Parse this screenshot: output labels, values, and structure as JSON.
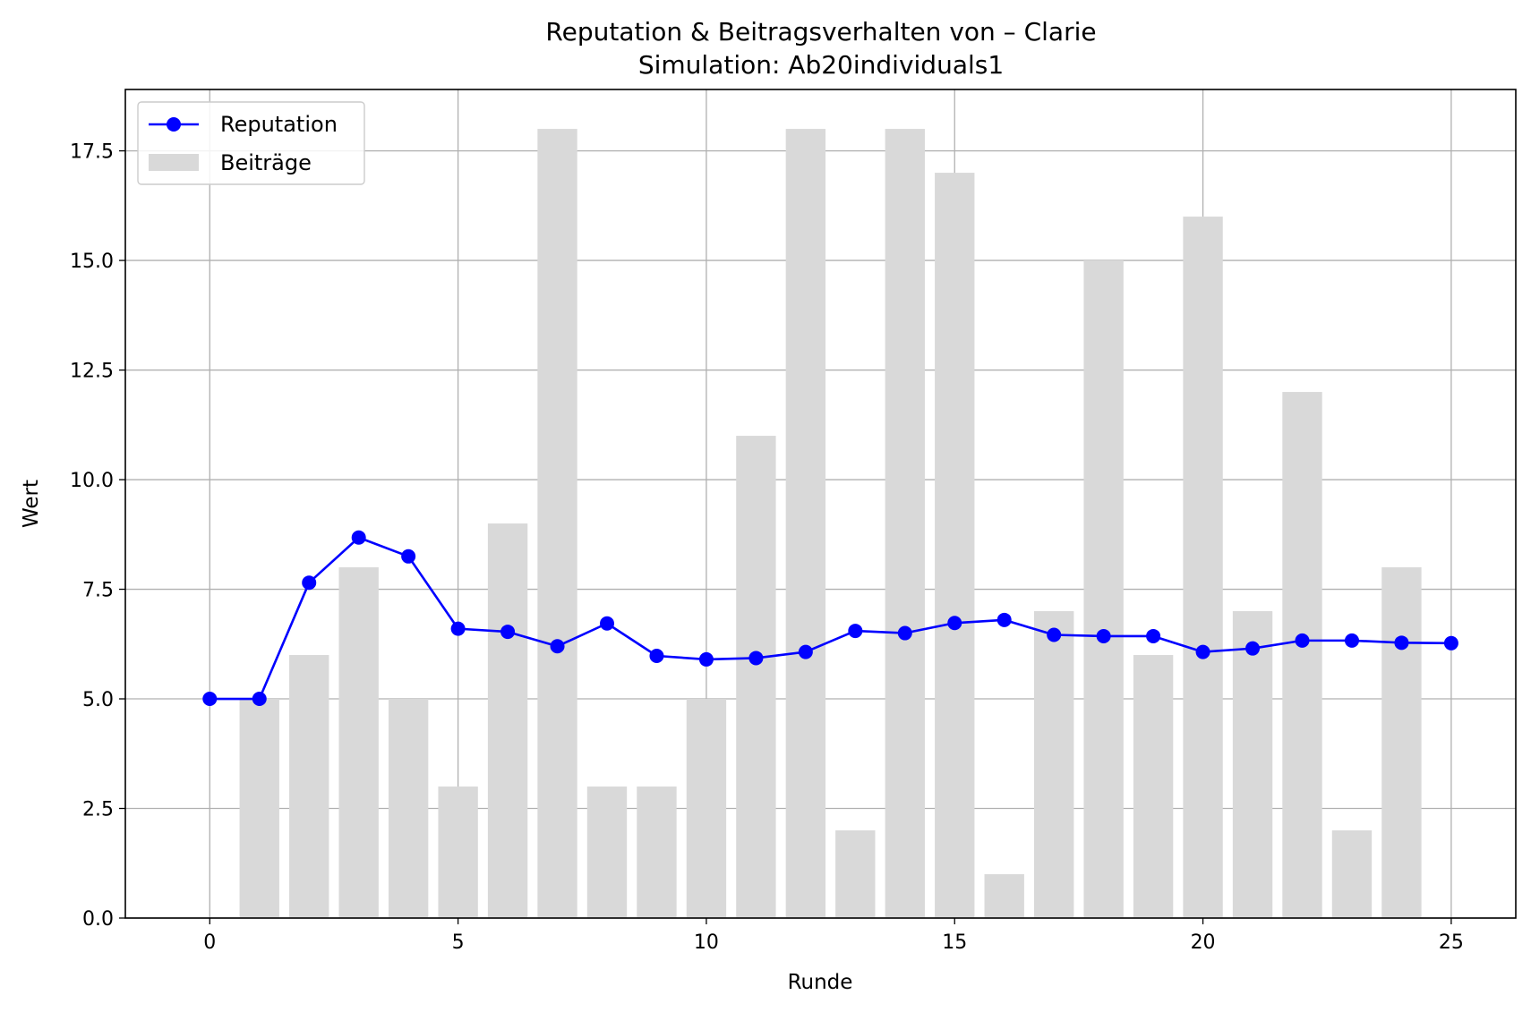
{
  "chart_data": {
    "type": "bar+line",
    "title": "Reputation & Beitragsverhalten von – Clarie",
    "subtitle": "Simulation: Ab20individuals1",
    "xlabel": "Runde",
    "ylabel": "Wert",
    "xlim": [
      -1.7,
      26.3
    ],
    "ylim": [
      0,
      18.9
    ],
    "xticks": [
      0,
      5,
      10,
      15,
      20,
      25
    ],
    "xtick_labels": [
      "0",
      "5",
      "10",
      "15",
      "20",
      "25"
    ],
    "yticks": [
      0,
      2.5,
      5,
      7.5,
      10,
      12.5,
      15,
      17.5
    ],
    "ytick_labels": [
      "0.0",
      "2.5",
      "5.0",
      "7.5",
      "10.0",
      "12.5",
      "15.0",
      "17.5"
    ],
    "grid": true,
    "legend_position": "top-left",
    "series": [
      {
        "name": "Reputation",
        "kind": "line",
        "color": "#0000ff",
        "x": [
          0,
          1,
          2,
          3,
          4,
          5,
          6,
          7,
          8,
          9,
          10,
          11,
          12,
          13,
          14,
          15,
          16,
          17,
          18,
          19,
          20,
          21,
          22,
          23,
          24,
          25
        ],
        "values": [
          5.0,
          5.0,
          7.65,
          8.68,
          8.25,
          6.6,
          6.53,
          6.2,
          6.72,
          5.98,
          5.9,
          5.93,
          6.07,
          6.55,
          6.5,
          6.73,
          6.8,
          6.46,
          6.43,
          6.43,
          6.07,
          6.15,
          6.33,
          6.33,
          6.28,
          6.27
        ]
      },
      {
        "name": "Beiträge",
        "kind": "bar",
        "color": "#d9d9d9",
        "x": [
          1,
          2,
          3,
          4,
          5,
          6,
          7,
          8,
          9,
          10,
          11,
          12,
          13,
          14,
          15,
          16,
          17,
          18,
          19,
          20,
          21,
          22,
          23,
          24
        ],
        "values": [
          5,
          6,
          8,
          5,
          3,
          9,
          18,
          3,
          3,
          5,
          11,
          18,
          2,
          18,
          17,
          1,
          7,
          15,
          6,
          16,
          7,
          12,
          2,
          8
        ]
      }
    ]
  }
}
